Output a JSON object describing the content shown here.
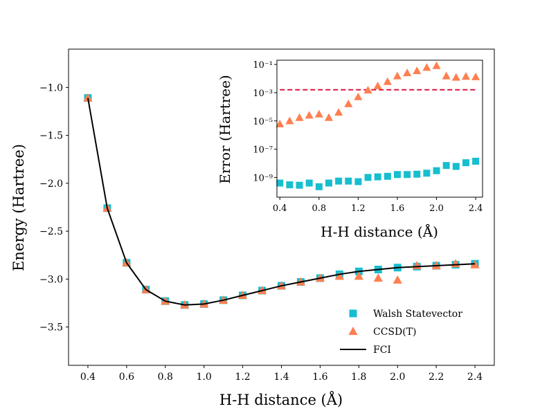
{
  "chart_data": [
    {
      "type": "line",
      "panel": "main",
      "title": "",
      "xlabel": "H-H distance (Å)",
      "ylabel": "Energy (Hartree)",
      "xlim": [
        0.3,
        2.5
      ],
      "ylim": [
        -3.9,
        -0.6
      ],
      "xticks": [
        0.4,
        0.6,
        0.8,
        1.0,
        1.2,
        1.4,
        1.6,
        1.8,
        2.0,
        2.2,
        2.4
      ],
      "xtick_labels": [
        "0.4",
        "0.6",
        "0.8",
        "1.0",
        "1.2",
        "1.4",
        "1.6",
        "1.8",
        "2.0",
        "2.2",
        "2.4"
      ],
      "yticks": [
        -1.0,
        -1.5,
        -2.0,
        -2.5,
        -3.0,
        -3.5
      ],
      "ytick_labels": [
        "−1.0",
        "−1.5",
        "−2.0",
        "−2.5",
        "−3.0",
        "−3.5"
      ],
      "x": [
        0.4,
        0.5,
        0.6,
        0.7,
        0.8,
        0.9,
        1.0,
        1.1,
        1.2,
        1.3,
        1.4,
        1.5,
        1.6,
        1.7,
        1.8,
        1.9,
        2.0,
        2.1,
        2.2,
        2.3,
        2.4
      ],
      "series": [
        {
          "name": "Walsh Statevector",
          "marker": "square",
          "color": "#17becf",
          "values": [
            -1.11,
            -2.26,
            -2.83,
            -3.11,
            -3.23,
            -3.27,
            -3.26,
            -3.22,
            -3.17,
            -3.12,
            -3.07,
            -3.03,
            -2.99,
            -2.95,
            -2.92,
            -2.9,
            -2.88,
            -2.87,
            -2.86,
            -2.85,
            -2.84
          ]
        },
        {
          "name": "CCSD(T)",
          "marker": "triangle",
          "color": "#ff7f50",
          "values": [
            -1.11,
            -2.26,
            -2.83,
            -3.11,
            -3.23,
            -3.27,
            -3.26,
            -3.22,
            -3.17,
            -3.12,
            -3.07,
            -3.03,
            -2.99,
            -2.97,
            -2.97,
            -2.99,
            -3.01,
            -2.86,
            -2.86,
            -2.84,
            -2.85
          ]
        },
        {
          "name": "FCI",
          "marker": "line",
          "color": "#000000",
          "values": [
            -1.11,
            -2.26,
            -2.83,
            -3.11,
            -3.23,
            -3.27,
            -3.26,
            -3.22,
            -3.17,
            -3.12,
            -3.07,
            -3.03,
            -2.99,
            -2.95,
            -2.92,
            -2.9,
            -2.88,
            -2.87,
            -2.86,
            -2.85,
            -2.84
          ]
        }
      ],
      "legend": {
        "placement": "lower-right",
        "entries": [
          "Walsh Statevector",
          "CCSD(T)",
          "FCI"
        ]
      }
    },
    {
      "type": "scatter",
      "panel": "inset",
      "title": "",
      "xlabel": "H-H distance (Å)",
      "ylabel": "Error (Hartree)",
      "yscale": "log",
      "xlim": [
        0.37,
        2.47
      ],
      "ylim_log10": [
        -10.4,
        -0.7
      ],
      "xticks": [
        0.4,
        0.8,
        1.2,
        1.6,
        2.0,
        2.4
      ],
      "xtick_labels": [
        "0.4",
        "0.8",
        "1.2",
        "1.6",
        "2.0",
        "2.4"
      ],
      "yticks_log10": [
        -1,
        -3,
        -5,
        -7,
        -9
      ],
      "ytick_labels": [
        "10⁻¹",
        "10⁻³",
        "10⁻⁵",
        "10⁻⁷",
        "10⁻⁹"
      ],
      "x": [
        0.4,
        0.5,
        0.6,
        0.7,
        0.8,
        0.9,
        1.0,
        1.1,
        1.2,
        1.3,
        1.4,
        1.5,
        1.6,
        1.7,
        1.8,
        1.9,
        2.0,
        2.1,
        2.2,
        2.3,
        2.4
      ],
      "series": [
        {
          "name": "Walsh Statevector",
          "marker": "square",
          "color": "#17becf",
          "values": [
            4e-10,
            3e-10,
            2.8e-10,
            4e-10,
            2.2e-10,
            4e-10,
            5.5e-10,
            5.5e-10,
            5e-10,
            1e-09,
            1.1e-09,
            1.2e-09,
            1.6e-09,
            1.6e-09,
            1.7e-09,
            2e-09,
            3e-09,
            7e-09,
            6e-09,
            1.1e-08,
            1.4e-08
          ]
        },
        {
          "name": "CCSD(T)",
          "marker": "triangle",
          "color": "#ff7f50",
          "values": [
            6e-06,
            1e-05,
            1.7e-05,
            2.5e-05,
            3e-05,
            1.7e-05,
            4e-05,
            0.00016,
            0.0005,
            0.0015,
            0.003,
            0.006,
            0.015,
            0.025,
            0.035,
            0.06,
            0.08,
            0.015,
            0.012,
            0.014,
            0.013
          ]
        }
      ],
      "reference_line": {
        "value": 0.0016,
        "color": "#dc143c",
        "style": "dashed"
      }
    }
  ]
}
